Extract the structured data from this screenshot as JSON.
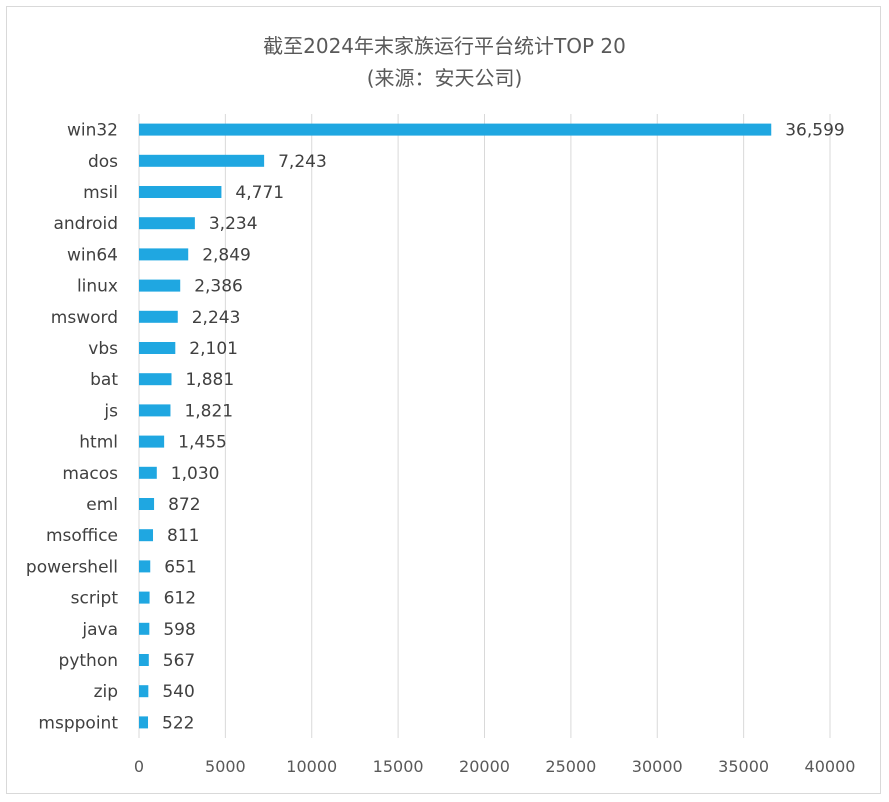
{
  "chart_data": {
    "type": "bar",
    "orientation": "horizontal",
    "title": "截至2024年末家族运行平台统计TOP 20",
    "subtitle": "(来源：安天公司)",
    "categories": [
      "win32",
      "dos",
      "msil",
      "android",
      "win64",
      "linux",
      "msword",
      "vbs",
      "bat",
      "js",
      "html",
      "macos",
      "eml",
      "msoffice",
      "powershell",
      "script",
      "java",
      "python",
      "zip",
      "msppoint"
    ],
    "values": [
      36599,
      7243,
      4771,
      3234,
      2849,
      2386,
      2243,
      2101,
      1881,
      1821,
      1455,
      1030,
      872,
      811,
      651,
      612,
      598,
      567,
      540,
      522
    ],
    "value_labels": [
      "36,599",
      "7,243",
      "4,771",
      "3,234",
      "2,849",
      "2,386",
      "2,243",
      "2,101",
      "1,881",
      "1,821",
      "1,455",
      "1,030",
      "872",
      "811",
      "651",
      "612",
      "598",
      "567",
      "540",
      "522"
    ],
    "xlim": [
      0,
      40000
    ],
    "x_ticks": [
      0,
      5000,
      10000,
      15000,
      20000,
      25000,
      30000,
      35000,
      40000
    ],
    "x_tick_labels": [
      "0",
      "5000",
      "10000",
      "15000",
      "20000",
      "25000",
      "30000",
      "35000",
      "40000"
    ],
    "grid": "vertical",
    "bar_color": "#1fa7e1",
    "legend": "none"
  }
}
